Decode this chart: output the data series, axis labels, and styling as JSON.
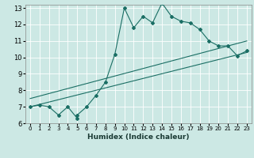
{
  "xlabel": "Humidex (Indice chaleur)",
  "ylabel": "",
  "bg_color": "#cce8e4",
  "line_color": "#1a6e64",
  "xlim": [
    -0.5,
    23.5
  ],
  "ylim": [
    6,
    13.2
  ],
  "yticks": [
    6,
    7,
    8,
    9,
    10,
    11,
    12,
    13
  ],
  "xticks": [
    0,
    1,
    2,
    3,
    4,
    5,
    6,
    7,
    8,
    9,
    10,
    11,
    12,
    13,
    14,
    15,
    16,
    17,
    18,
    19,
    20,
    21,
    22,
    23
  ],
  "line1_x": [
    0,
    1,
    2,
    3,
    4,
    5,
    5,
    6,
    7,
    8,
    9,
    10,
    11,
    12,
    13,
    14,
    15,
    16,
    17,
    18,
    19,
    20,
    21,
    22,
    23
  ],
  "line1_y": [
    7.0,
    7.1,
    7.0,
    6.5,
    7.0,
    6.3,
    6.5,
    7.0,
    7.7,
    8.5,
    10.2,
    13.0,
    11.8,
    12.5,
    12.1,
    13.3,
    12.5,
    12.2,
    12.1,
    11.7,
    11.0,
    10.7,
    10.7,
    10.1,
    10.4
  ],
  "line2_x": [
    0,
    23
  ],
  "line2_y": [
    7.0,
    10.3
  ],
  "line3_x": [
    0,
    23
  ],
  "line3_y": [
    7.5,
    11.0
  ]
}
